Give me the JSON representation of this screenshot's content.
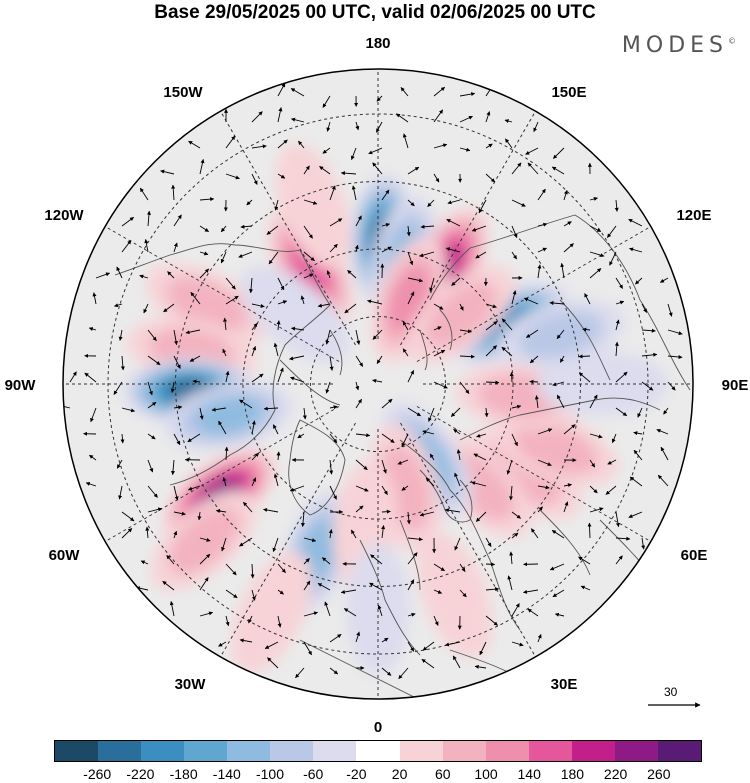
{
  "title": "Base 29/05/2025 00 UTC, valid 02/06/2025 00 UTC",
  "brand": {
    "name": "MODES",
    "mark": "©"
  },
  "longitude_labels": [
    {
      "id": "180",
      "text": "180"
    },
    {
      "id": "150E",
      "text": "150E"
    },
    {
      "id": "120E",
      "text": "120E"
    },
    {
      "id": "90E",
      "text": "90E"
    },
    {
      "id": "60E",
      "text": "60E"
    },
    {
      "id": "30E",
      "text": "30E"
    },
    {
      "id": "0",
      "text": "0"
    },
    {
      "id": "30W",
      "text": "30W"
    },
    {
      "id": "60W",
      "text": "60W"
    },
    {
      "id": "90W",
      "text": "90W"
    },
    {
      "id": "120W",
      "text": "120W"
    },
    {
      "id": "150W",
      "text": "150W"
    }
  ],
  "reference_vector": {
    "label": "30"
  },
  "colorbar": {
    "ticks": [
      "-260",
      "-220",
      "-180",
      "-140",
      "-100",
      "-60",
      "-20",
      "20",
      "60",
      "100",
      "140",
      "180",
      "220",
      "260"
    ],
    "colors": [
      "#1c4a66",
      "#2a6f9b",
      "#3d8ec0",
      "#5fa7d0",
      "#8fbbe0",
      "#b9c8e6",
      "#dcdcee",
      "#ffffff",
      "#f7d3d7",
      "#f3b2bf",
      "#ef8fae",
      "#e4579c",
      "#c21f8a",
      "#8e1a86",
      "#5a1b74"
    ]
  },
  "anomaly_centers": [
    {
      "lon": 178,
      "lat": 58,
      "value": -240
    },
    {
      "lon": 168,
      "lat": 62,
      "value": -140
    },
    {
      "lon": 150,
      "lat": 60,
      "value": 200
    },
    {
      "lon": 160,
      "lat": 70,
      "value": 120
    },
    {
      "lon": -150,
      "lat": 60,
      "value": 160
    },
    {
      "lon": -160,
      "lat": 48,
      "value": 60
    },
    {
      "lon": 115,
      "lat": 58,
      "value": -200
    },
    {
      "lon": 105,
      "lat": 48,
      "value": -80
    },
    {
      "lon": 130,
      "lat": 66,
      "value": 80
    },
    {
      "lon": -115,
      "lat": 48,
      "value": 100
    },
    {
      "lon": -100,
      "lat": 48,
      "value": 80
    },
    {
      "lon": -88,
      "lat": 48,
      "value": -240
    },
    {
      "lon": -78,
      "lat": 56,
      "value": -120
    },
    {
      "lon": -55,
      "lat": 47,
      "value": 240
    },
    {
      "lon": -48,
      "lat": 38,
      "value": 100
    },
    {
      "lon": 58,
      "lat": 52,
      "value": 110
    },
    {
      "lon": 70,
      "lat": 48,
      "value": 80
    },
    {
      "lon": 45,
      "lat": 58,
      "value": 90
    },
    {
      "lon": 85,
      "lat": 58,
      "value": 100
    },
    {
      "lon": 33,
      "lat": 70,
      "value": -120
    },
    {
      "lon": 15,
      "lat": 66,
      "value": 80
    },
    {
      "lon": -20,
      "lat": 50,
      "value": -130
    },
    {
      "lon": -5,
      "lat": 58,
      "value": 60
    },
    {
      "lon": 90,
      "lat": 40,
      "value": -40
    },
    {
      "lon": -130,
      "lat": 66,
      "value": -40
    },
    {
      "lon": 0,
      "lat": 40,
      "value": -50
    },
    {
      "lon": 20,
      "lat": 40,
      "value": 40
    },
    {
      "lon": -25,
      "lat": 34,
      "value": 60
    }
  ]
}
